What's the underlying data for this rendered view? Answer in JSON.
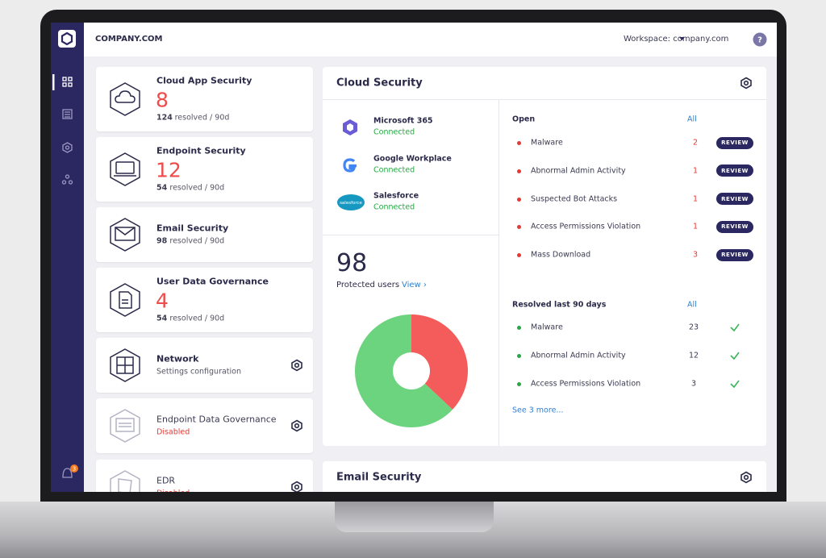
{
  "header": {
    "company": "COMPANY.COM",
    "workspace": "Workspace: company.com",
    "help": "?"
  },
  "sidebar": {
    "notification_count": 3
  },
  "cards": [
    {
      "title": "Cloud App Security",
      "count": 8,
      "resolved_count": 124,
      "resolved_text": "resolved / 90d"
    },
    {
      "title": "Endpoint Security",
      "count": 12,
      "resolved_count": 54,
      "resolved_text": "resolved / 90d"
    },
    {
      "title": "Email Security",
      "resolved_count": 98,
      "resolved_text": "resolved / 90d"
    },
    {
      "title": "User Data Governance",
      "count": 4,
      "resolved_count": 54,
      "resolved_text": "resolved / 90d"
    },
    {
      "title": "Network",
      "subtitle": "Settings configuration"
    },
    {
      "title": "Endpoint Data Governance",
      "status": "Disabled"
    },
    {
      "title": "EDR",
      "status": "Disabled"
    }
  ],
  "cloud_security": {
    "title": "Cloud Security",
    "integrations": [
      {
        "name": "Microsoft 365",
        "status": "Connected"
      },
      {
        "name": "Google Workplace",
        "status": "Connected"
      },
      {
        "name": "Salesforce",
        "status": "Connected",
        "logo_text": "salesforce"
      }
    ],
    "protected_users": {
      "count": 98,
      "label": "Protected users",
      "link": "View ›"
    },
    "donut": {
      "segments": [
        {
          "value": 37,
          "color": "#f45b5b"
        },
        {
          "value": 63,
          "color": "#6cd47e"
        }
      ]
    },
    "open": {
      "title": "Open",
      "link": "All",
      "items": [
        {
          "name": "Malware",
          "count": 2,
          "action": "REVIEW"
        },
        {
          "name": "Abnormal Admin Activity",
          "count": 1,
          "action": "REVIEW"
        },
        {
          "name": "Suspected Bot Attacks",
          "count": 1,
          "action": "REVIEW"
        },
        {
          "name": "Access Permissions Violation",
          "count": 1,
          "action": "REVIEW"
        },
        {
          "name": "Mass Download",
          "count": 3,
          "action": "REVIEW"
        }
      ]
    },
    "resolved": {
      "title": "Resolved last 90 days",
      "link": "All",
      "items": [
        {
          "name": "Malware",
          "count": 23
        },
        {
          "name": "Abnormal Admin Activity",
          "count": 12
        },
        {
          "name": "Access Permissions Violation",
          "count": 3
        }
      ],
      "more": "See 3 more..."
    }
  },
  "email_security": {
    "title": "Email Security"
  }
}
